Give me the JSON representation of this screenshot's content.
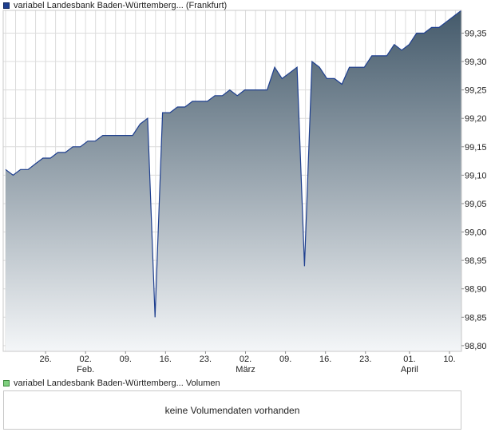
{
  "chart_data": {
    "type": "area",
    "series": [
      {
        "name": "variabel Landesbank Baden-Württemberg... (Frankfurt)",
        "color": "#1e3f8f",
        "values": [
          99.11,
          99.1,
          99.11,
          99.11,
          99.12,
          99.13,
          99.13,
          99.14,
          99.14,
          99.15,
          99.15,
          99.16,
          99.16,
          99.17,
          99.17,
          99.17,
          99.17,
          99.17,
          99.19,
          99.2,
          98.85,
          99.21,
          99.21,
          99.22,
          99.22,
          99.23,
          99.23,
          99.23,
          99.24,
          99.24,
          99.25,
          99.24,
          99.25,
          99.25,
          99.25,
          99.25,
          99.29,
          99.27,
          99.28,
          99.29,
          98.94,
          99.3,
          99.29,
          99.27,
          99.27,
          99.26,
          99.29,
          99.29,
          99.29,
          99.31,
          99.31,
          99.31,
          99.33,
          99.32,
          99.33,
          99.35,
          99.35,
          99.36,
          99.36,
          99.37,
          99.38,
          99.39
        ]
      }
    ],
    "ylim": [
      98.79,
      99.39
    ],
    "yticks": [
      "99,35",
      "99,30",
      "99,25",
      "99,20",
      "99,15",
      "99,10",
      "99,05",
      "99,00",
      "98,95",
      "98,90",
      "98,85",
      "98,80"
    ],
    "yticks_values": [
      99.35,
      99.3,
      99.25,
      99.2,
      99.15,
      99.1,
      99.05,
      99.0,
      98.95,
      98.9,
      98.85,
      98.8
    ],
    "xticks": [
      "26.",
      "02.",
      "09.",
      "16.",
      "23.",
      "02.",
      "09.",
      "16.",
      "23.",
      "01.",
      "10."
    ],
    "xtick_index": [
      10,
      20,
      30,
      40,
      50,
      60,
      70,
      80,
      90,
      101,
      111
    ],
    "month_labels": [
      {
        "label": "Feb.",
        "tick": 1
      },
      {
        "label": "März",
        "tick": 5
      },
      {
        "label": "April",
        "tick": 9
      }
    ],
    "grid": true,
    "fill_gradient": [
      "#445a6b",
      "#f4f6f8"
    ]
  },
  "legends": {
    "price": "variabel Landesbank Baden-Württemberg... (Frankfurt)",
    "volume": "variabel Landesbank Baden-Württemberg... Volumen"
  },
  "volume": {
    "message": "keine Volumendaten vorhanden"
  }
}
